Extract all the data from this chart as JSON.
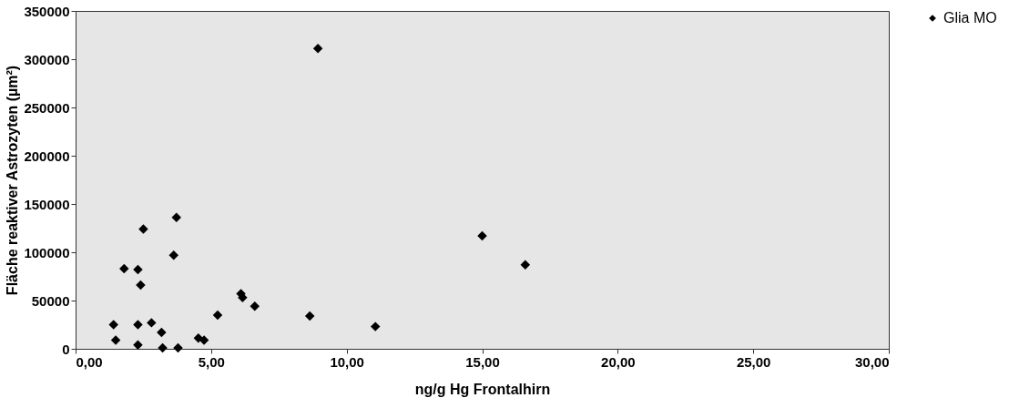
{
  "chart_data": {
    "type": "scatter",
    "xlabel": "ng/g Hg Frontalhirn",
    "ylabel": "Fläche reaktiver Astrozyten (µm²)",
    "x": [
      1.4,
      1.48,
      1.79,
      2.3,
      2.4,
      2.5,
      2.3,
      2.3,
      2.8,
      3.17,
      3.21,
      3.62,
      3.72,
      3.78,
      4.53,
      4.74,
      5.24,
      6.1,
      6.16,
      6.61,
      8.64,
      8.94,
      11.06,
      15.0,
      16.59
    ],
    "series": [
      {
        "name": "Glia MO",
        "color": "#000000",
        "values": [
          25000,
          9000,
          83000,
          82000,
          66000,
          124000,
          25000,
          4000,
          27000,
          17000,
          1000,
          97000,
          136000,
          1000,
          11000,
          9000,
          35000,
          57000,
          53000,
          44000,
          34000,
          311000,
          23000,
          117000,
          87000
        ]
      }
    ],
    "marker": "diamond",
    "legend": "right",
    "grid": false,
    "xlim": [
      0,
      30
    ],
    "xticks": [
      {
        "value": 0,
        "label": "0,00"
      },
      {
        "value": 5,
        "label": "5,00"
      },
      {
        "value": 10,
        "label": "10,00"
      },
      {
        "value": 15,
        "label": "15,00"
      },
      {
        "value": 20,
        "label": "20,00"
      },
      {
        "value": 25,
        "label": "25,00"
      },
      {
        "value": 30,
        "label": "30,00"
      }
    ],
    "ylim": [
      0,
      350000
    ],
    "yticks": [
      0,
      50000,
      100000,
      150000,
      200000,
      250000,
      300000,
      350000
    ]
  }
}
